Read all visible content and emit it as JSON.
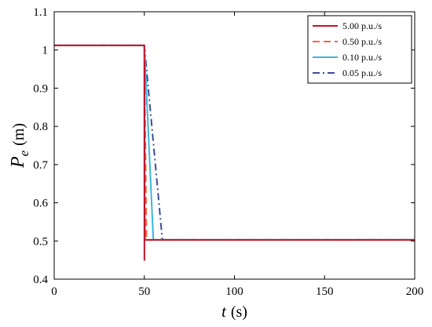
{
  "chart_data": {
    "type": "line",
    "xlabel": {
      "var": "t",
      "unit": "(s)"
    },
    "ylabel": {
      "var": "P",
      "sub": "e",
      "unit": "(m)"
    },
    "xlim": [
      0,
      200
    ],
    "ylim": [
      0.4,
      1.1
    ],
    "xticks": [
      0,
      50,
      100,
      150,
      200
    ],
    "xtick_labels": [
      "0",
      "50",
      "100",
      "150",
      "200"
    ],
    "yticks": [
      0.4,
      0.5,
      0.6,
      0.7,
      0.8,
      0.9,
      1.0,
      1.1
    ],
    "ytick_labels": [
      "0.4",
      "0.5",
      "0.6",
      "0.7",
      "0.8",
      "0.9",
      "1",
      "1.1"
    ],
    "grid": false,
    "legend_position": "top-right",
    "series": [
      {
        "name": "5.00 p.u./s",
        "color": "#c0142a",
        "dash": "solid",
        "x": [
          0,
          50,
          50.05,
          50.1,
          50.15,
          50.3,
          200
        ],
        "y": [
          1.012,
          1.012,
          0.45,
          0.97,
          0.6,
          0.503,
          0.503
        ]
      },
      {
        "name": "0.50 p.u./s",
        "color": "#f26a3d",
        "dash": "dashed",
        "x": [
          0,
          50,
          51.2,
          200
        ],
        "y": [
          1.012,
          1.012,
          0.503,
          0.503
        ]
      },
      {
        "name": "0.10 p.u./s",
        "color": "#3cb4df",
        "dash": "solid",
        "x": [
          0,
          50,
          55,
          200
        ],
        "y": [
          1.012,
          1.012,
          0.503,
          0.503
        ]
      },
      {
        "name": "0.05 p.u./s",
        "color": "#3a4ca0",
        "dash": "dashdot",
        "x": [
          0,
          50,
          60,
          200
        ],
        "y": [
          1.012,
          1.012,
          0.503,
          0.503
        ]
      }
    ]
  }
}
